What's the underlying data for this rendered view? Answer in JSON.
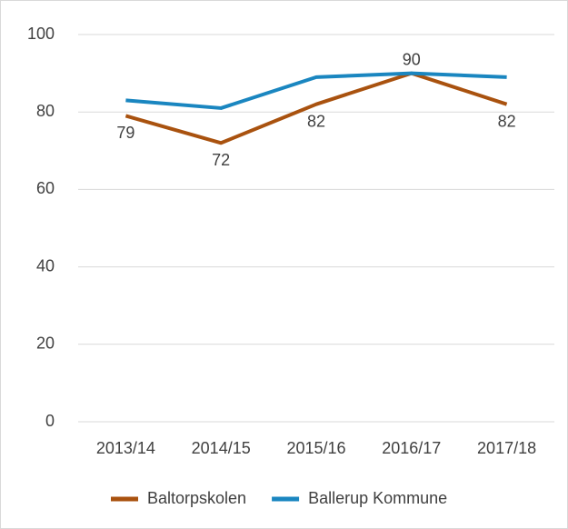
{
  "chart_data": {
    "type": "line",
    "categories": [
      "2013/14",
      "2014/15",
      "2015/16",
      "2016/17",
      "2017/18"
    ],
    "series": [
      {
        "name": "Baltorpskolen",
        "color": "#a9520f",
        "values": [
          79,
          72,
          82,
          90,
          82
        ]
      },
      {
        "name": "Ballerup Kommune",
        "color": "#1a86c0",
        "values": [
          83,
          81,
          89,
          90,
          89
        ]
      }
    ],
    "ylim": [
      0,
      100
    ],
    "yticks": [
      0,
      20,
      40,
      60,
      80,
      100
    ],
    "grid": true,
    "legend": "bottom"
  }
}
